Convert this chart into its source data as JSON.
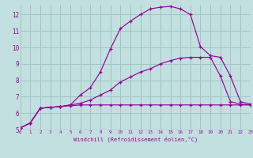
{
  "xlabel": "Windchill (Refroidissement éolien,°C)",
  "bg_color": "#c2e0e0",
  "grid_color": "#a0c4c4",
  "line_color": "#990099",
  "xlim": [
    0,
    23
  ],
  "ylim": [
    5,
    12.6
  ],
  "yticks": [
    5,
    6,
    7,
    8,
    9,
    10,
    11,
    12
  ],
  "xticks": [
    0,
    1,
    2,
    3,
    4,
    5,
    6,
    7,
    8,
    9,
    10,
    11,
    12,
    13,
    14,
    15,
    16,
    17,
    18,
    19,
    20,
    21,
    22,
    23
  ],
  "series1_x": [
    0,
    1,
    2,
    3,
    4,
    5,
    6,
    7,
    8,
    9,
    10,
    11,
    12,
    13,
    14,
    15,
    16,
    17,
    18,
    19,
    20,
    21,
    22,
    23
  ],
  "series1_y": [
    5.1,
    5.4,
    6.3,
    6.35,
    6.4,
    6.45,
    6.5,
    6.5,
    6.5,
    6.5,
    6.5,
    6.5,
    6.5,
    6.5,
    6.5,
    6.5,
    6.5,
    6.5,
    6.5,
    6.5,
    6.5,
    6.5,
    6.5,
    6.5
  ],
  "series2_x": [
    0,
    1,
    2,
    3,
    4,
    5,
    6,
    7,
    8,
    9,
    10,
    11,
    12,
    13,
    14,
    15,
    16,
    17,
    18,
    19,
    20,
    21,
    22,
    23
  ],
  "series2_y": [
    5.1,
    5.4,
    6.3,
    6.35,
    6.4,
    6.5,
    6.6,
    6.8,
    7.1,
    7.4,
    7.9,
    8.2,
    8.5,
    8.7,
    9.0,
    9.2,
    9.35,
    9.4,
    9.4,
    9.4,
    8.25,
    6.7,
    6.55,
    6.5
  ],
  "series3_x": [
    0,
    1,
    2,
    3,
    4,
    5,
    6,
    7,
    8,
    9,
    10,
    11,
    12,
    13,
    14,
    15,
    16,
    17,
    18,
    19,
    20,
    21,
    22,
    23
  ],
  "series3_y": [
    5.1,
    5.4,
    6.3,
    6.35,
    6.4,
    6.5,
    7.1,
    7.55,
    8.5,
    9.9,
    11.15,
    11.6,
    12.0,
    12.35,
    12.45,
    12.5,
    12.35,
    12.0,
    10.05,
    9.5,
    9.4,
    8.25,
    6.7,
    6.55
  ]
}
